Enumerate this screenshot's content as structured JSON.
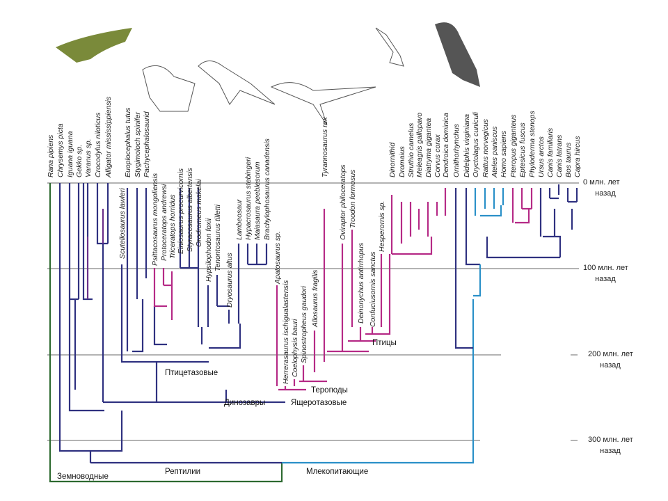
{
  "species": [
    "Rana pipiens",
    "Chrysemys picta",
    "Iguana iguana",
    "Gekko sp.",
    "Varanus sp.",
    "Crocodylus niloticus",
    "Alligator mississippiensis",
    "Scutellosaurus lawleri",
    "Euoplocephalus tutus",
    "Stygimoloch spinifer",
    "Pachycephalosaurid",
    "Psittacosaurus mongoliensis",
    "Protoceratops andrewsi",
    "Triceratops horridus",
    "Einiosaurus procurvicornis",
    "Styracosaurus albertensis",
    "Orodromeus makelai",
    "Hypsilophodon foxii",
    "Tenontosaurus tilletti",
    "Dryosaurus altus",
    "Lambeosaur",
    "Hypacrosaurus stebingeri",
    "Maiasaura peeblesorum",
    "Brachylophosaurus canadensis",
    "Apatosaurus sp.",
    "Herrerasaurus ischigualastensis",
    "Coelophysis bauri",
    "Spinostropheus gaudori",
    "Allosaurus fragilis",
    "Tyrannosaurus rex",
    "Oviraptor philoceratops",
    "Troodon formosus",
    "Deinonychus antirrhopus",
    "Confuciusornis sanctus",
    "Hesperornis sp.",
    "Dinornithid",
    "Dromaius",
    "Struthio camelus",
    "Meleagris gallopavo",
    "Diatryma gigantea",
    "Corvus corax",
    "Dendroica dominica",
    "Ornithorhynchus",
    "Didelphis virginiana",
    "Oryctolagus cuniculi",
    "Rattus norvegicus",
    "Ateles paniscus",
    "Homo sapiens",
    "Pteropus giganteus",
    "Eptesicus fuscus",
    "Phyloderma stenops",
    "Ursus arctos",
    "Canis familiaris",
    "Canis latrans",
    "Bos taurus",
    "Capra hircus"
  ],
  "time_labels": [
    [
      "0 млн. лет",
      "назад"
    ],
    [
      "100 млн. лет",
      "назад"
    ],
    [
      "200 млн. лет",
      "назад"
    ],
    [
      "300 млн. лет",
      "назад"
    ]
  ],
  "groups": [
    "Птицетазовые",
    "Динозавры",
    "Ящеротазовые",
    "Тероподы",
    "Птицы",
    "Земноводные",
    "Рептилии",
    "Млекопитающие"
  ]
}
